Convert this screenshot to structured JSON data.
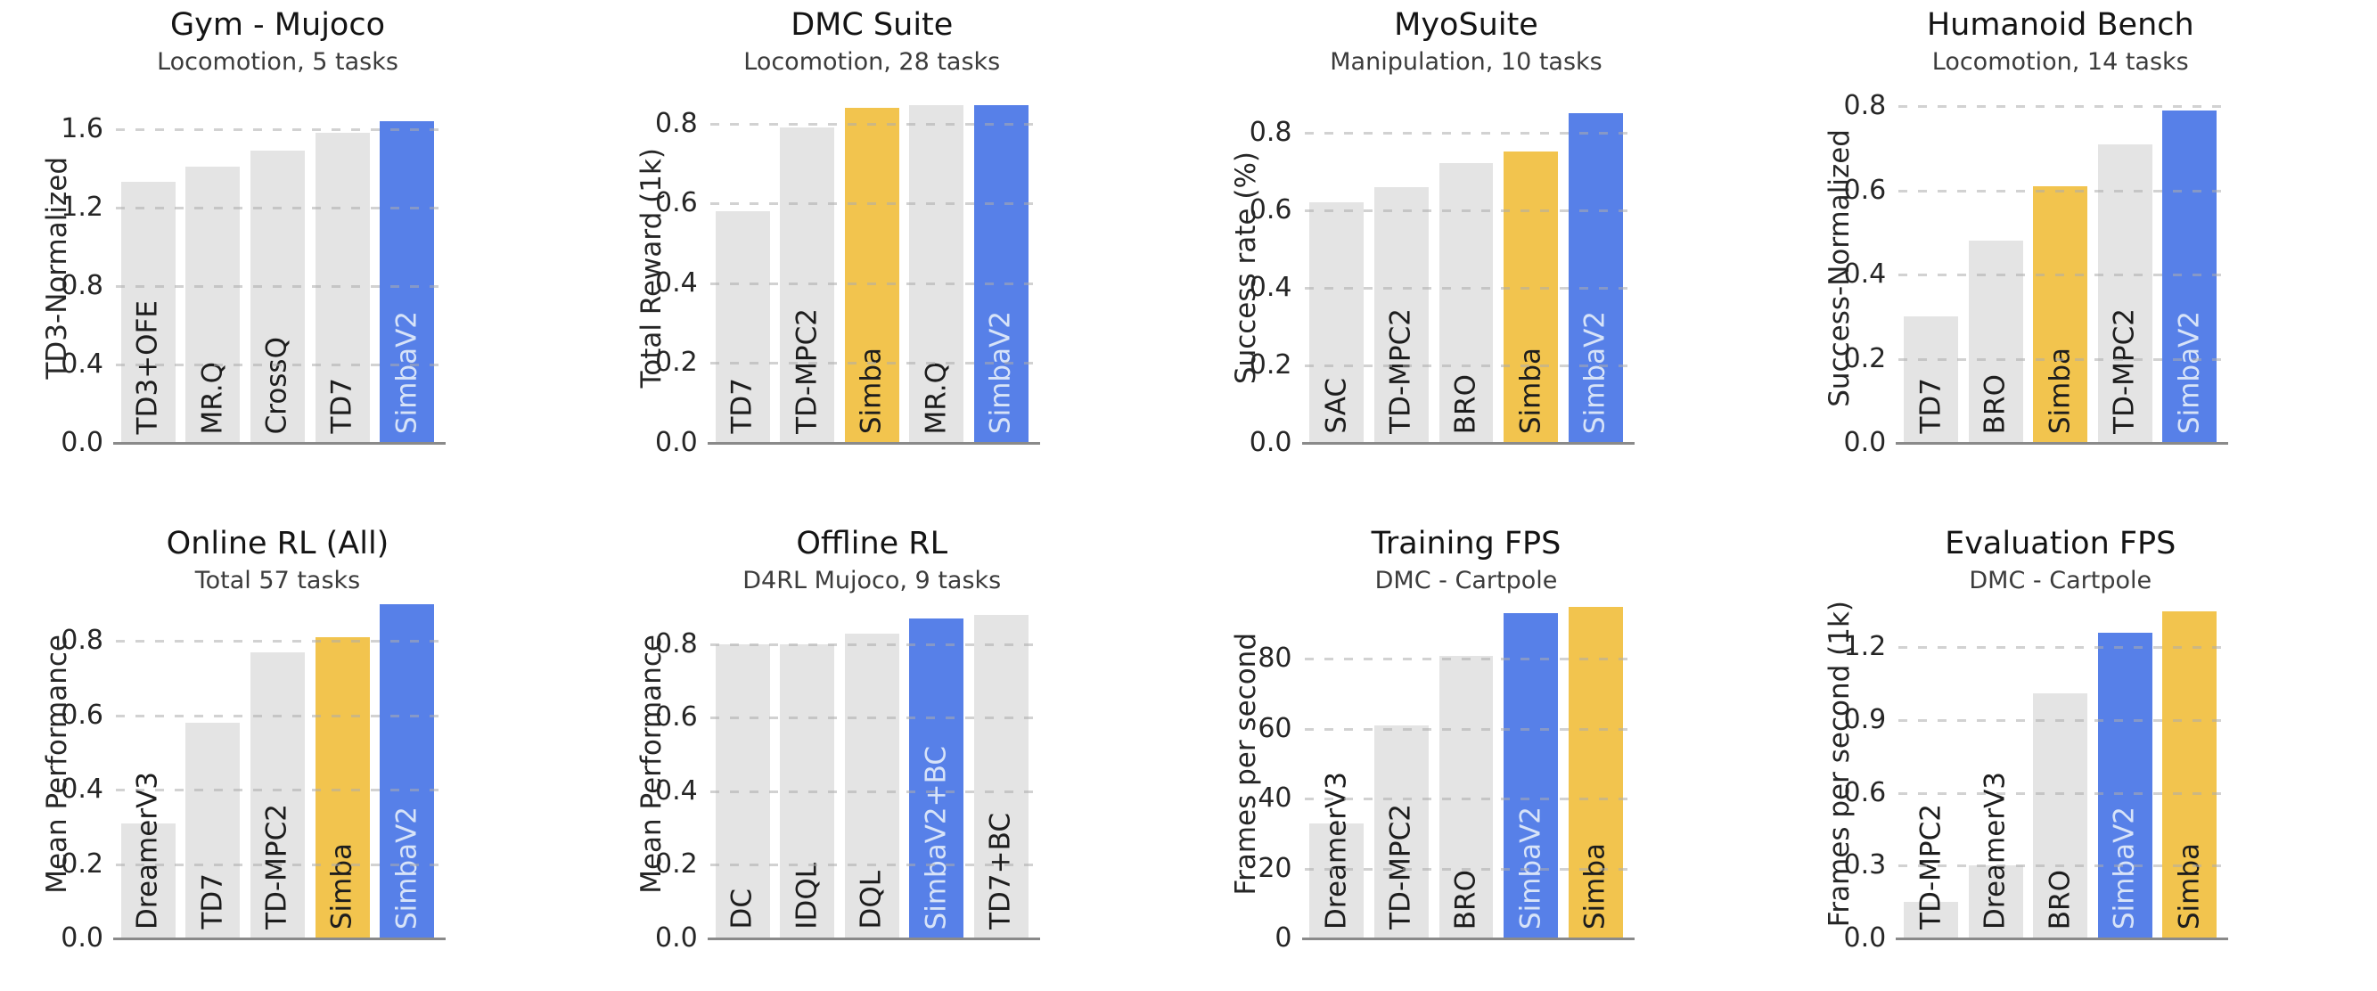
{
  "palette": {
    "gray_bar": "#e4e4e4",
    "accent_yellow": "#f2c44e",
    "accent_blue": "#5780e8",
    "bar_label_dark": "#1d1d1d",
    "bar_label_on_blue": "#d7e3f8",
    "gridline": "#acacac",
    "axis_spine": "#8a8a8a"
  },
  "chart_data": [
    {
      "type": "bar",
      "title": "Gym - Mujoco",
      "subtitle": "Locomotion, 5 tasks",
      "ylabel": "TD3-Normalized",
      "ytick_labels": [
        "0.0",
        "0.4",
        "0.8",
        "1.2",
        "1.6"
      ],
      "ytick_values": [
        0,
        0.4,
        0.8,
        1.2,
        1.6
      ],
      "ymax": 1.78,
      "grid": "dashed",
      "bars": [
        {
          "label": "TD3+OFE",
          "value": 1.33,
          "color": "gray"
        },
        {
          "label": "MR.Q",
          "value": 1.41,
          "color": "gray"
        },
        {
          "label": "CrossQ",
          "value": 1.49,
          "color": "gray"
        },
        {
          "label": "TD7",
          "value": 1.58,
          "color": "gray"
        },
        {
          "label": "SimbaV2",
          "value": 1.64,
          "color": "blue"
        }
      ]
    },
    {
      "type": "bar",
      "title": "DMC Suite",
      "subtitle": "Locomotion, 28 tasks",
      "ylabel": "Total Reward (1k)",
      "ytick_labels": [
        "0.0",
        "0.2",
        "0.4",
        "0.6",
        "0.8"
      ],
      "ytick_values": [
        0,
        0.2,
        0.4,
        0.6,
        0.8
      ],
      "ymax": 0.875,
      "grid": "dashed",
      "bars": [
        {
          "label": "TD7",
          "value": 0.58,
          "color": "gray"
        },
        {
          "label": "TD-MPC2",
          "value": 0.79,
          "color": "gray"
        },
        {
          "label": "Simba",
          "value": 0.84,
          "color": "yellow"
        },
        {
          "label": "MR.Q",
          "value": 0.845,
          "color": "gray"
        },
        {
          "label": "SimbaV2",
          "value": 0.845,
          "color": "blue"
        }
      ]
    },
    {
      "type": "bar",
      "title": "MyoSuite",
      "subtitle": "Manipulation, 10 tasks",
      "ylabel": "Success rate (%)",
      "ytick_labels": [
        "0.0",
        "0.2",
        "0.4",
        "0.6",
        "0.8"
      ],
      "ytick_values": [
        0,
        0.2,
        0.4,
        0.6,
        0.8
      ],
      "ymax": 0.9,
      "grid": "dashed",
      "bars": [
        {
          "label": "SAC",
          "value": 0.62,
          "color": "gray"
        },
        {
          "label": "TD-MPC2",
          "value": 0.66,
          "color": "gray"
        },
        {
          "label": "BRO",
          "value": 0.72,
          "color": "gray"
        },
        {
          "label": "Simba",
          "value": 0.75,
          "color": "yellow"
        },
        {
          "label": "SimbaV2",
          "value": 0.85,
          "color": "blue"
        }
      ]
    },
    {
      "type": "bar",
      "title": "Humanoid Bench",
      "subtitle": "Locomotion, 14 tasks",
      "ylabel": "Success-Normalized",
      "ytick_labels": [
        "0.0",
        "0.2",
        "0.4",
        "0.6",
        "0.8"
      ],
      "ytick_values": [
        0,
        0.2,
        0.4,
        0.6,
        0.8
      ],
      "ymax": 0.83,
      "grid": "dashed",
      "bars": [
        {
          "label": "TD7",
          "value": 0.3,
          "color": "gray"
        },
        {
          "label": "BRO",
          "value": 0.48,
          "color": "gray"
        },
        {
          "label": "Simba",
          "value": 0.61,
          "color": "yellow"
        },
        {
          "label": "TD-MPC2",
          "value": 0.71,
          "color": "gray"
        },
        {
          "label": "SimbaV2",
          "value": 0.79,
          "color": "blue"
        }
      ]
    },
    {
      "type": "bar",
      "title": "Online RL (All)",
      "subtitle": "Total 57 tasks",
      "ylabel": "Mean Performance",
      "ytick_labels": [
        "0.0",
        "0.2",
        "0.4",
        "0.6",
        "0.8"
      ],
      "ytick_values": [
        0,
        0.2,
        0.4,
        0.6,
        0.8
      ],
      "ymax": 0.94,
      "grid": "dashed",
      "bars": [
        {
          "label": "DreamerV3",
          "value": 0.31,
          "color": "gray"
        },
        {
          "label": "TD7",
          "value": 0.58,
          "color": "gray"
        },
        {
          "label": "TD-MPC2",
          "value": 0.77,
          "color": "gray"
        },
        {
          "label": "Simba",
          "value": 0.81,
          "color": "yellow"
        },
        {
          "label": "SimbaV2",
          "value": 0.9,
          "color": "blue"
        }
      ]
    },
    {
      "type": "bar",
      "title": "Offline RL",
      "subtitle": "D4RL Mujoco, 9 tasks",
      "ylabel": "Mean Performance",
      "ytick_labels": [
        "0.0",
        "0.2",
        "0.4",
        "0.6",
        "0.8"
      ],
      "ytick_values": [
        0,
        0.2,
        0.4,
        0.6,
        0.8
      ],
      "ymax": 0.95,
      "grid": "dashed",
      "bars": [
        {
          "label": "DC",
          "value": 0.8,
          "color": "gray"
        },
        {
          "label": "IDQL",
          "value": 0.8,
          "color": "gray"
        },
        {
          "label": "DQL",
          "value": 0.83,
          "color": "gray"
        },
        {
          "label": "SimbaV2+BC",
          "value": 0.87,
          "color": "blue"
        },
        {
          "label": "TD7+BC",
          "value": 0.88,
          "color": "gray"
        }
      ]
    },
    {
      "type": "bar",
      "title": "Training FPS",
      "subtitle": "DMC - Cartpole",
      "ylabel": "Frames per second",
      "ytick_labels": [
        "0",
        "20",
        "40",
        "60",
        "80"
      ],
      "ytick_values": [
        0,
        20,
        40,
        60,
        80
      ],
      "ymax": 100,
      "grid": "dashed",
      "bars": [
        {
          "label": "DreamerV3",
          "value": 33,
          "color": "gray"
        },
        {
          "label": "TD-MPC2",
          "value": 61,
          "color": "gray"
        },
        {
          "label": "BRO",
          "value": 81,
          "color": "gray"
        },
        {
          "label": "SimbaV2",
          "value": 93,
          "color": "blue"
        },
        {
          "label": "Simba",
          "value": 95,
          "color": "yellow"
        }
      ]
    },
    {
      "type": "bar",
      "title": "Evaluation FPS",
      "subtitle": "DMC - Cartpole",
      "ylabel": "Frames per second (1k)",
      "ytick_labels": [
        "0.0",
        "0.3",
        "0.6",
        "0.9",
        "1.2"
      ],
      "ytick_values": [
        0,
        0.3,
        0.6,
        0.9,
        1.2
      ],
      "ymax": 1.44,
      "grid": "dashed",
      "bars": [
        {
          "label": "TD-MPC2",
          "value": 0.15,
          "color": "gray"
        },
        {
          "label": "DreamerV3",
          "value": 0.3,
          "color": "gray"
        },
        {
          "label": "BRO",
          "value": 1.01,
          "color": "gray"
        },
        {
          "label": "SimbaV2",
          "value": 1.26,
          "color": "blue"
        },
        {
          "label": "Simba",
          "value": 1.35,
          "color": "yellow"
        }
      ]
    }
  ]
}
